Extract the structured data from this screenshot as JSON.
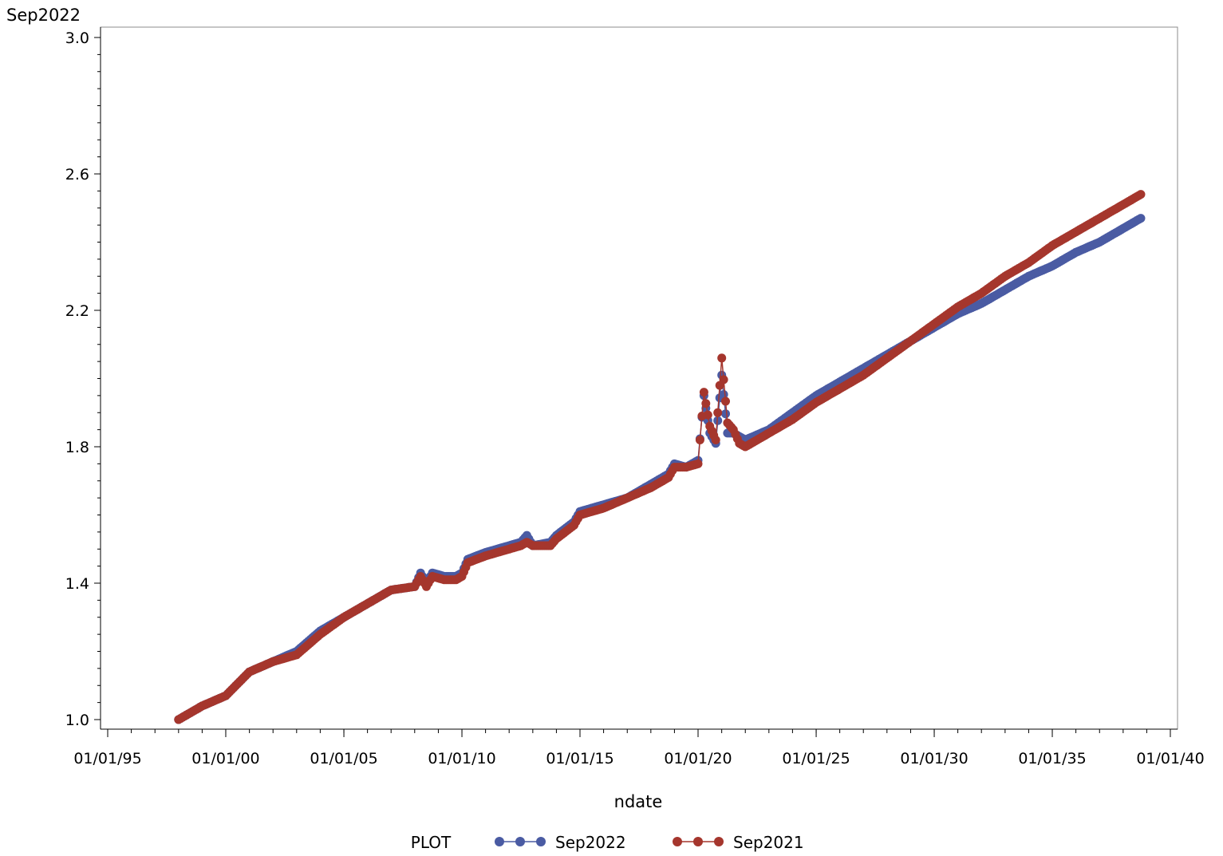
{
  "chart_data": {
    "type": "line",
    "ylabel": "Sep2022",
    "xlabel": "ndate",
    "x_axis": {
      "type": "date",
      "min": "1995-01-01",
      "max": "2040-01-01",
      "ticks": [
        {
          "date": "1995-01-01",
          "label": "01/01/95"
        },
        {
          "date": "2000-01-01",
          "label": "01/01/00"
        },
        {
          "date": "2005-01-01",
          "label": "01/01/05"
        },
        {
          "date": "2010-01-01",
          "label": "01/01/10"
        },
        {
          "date": "2015-01-01",
          "label": "01/01/15"
        },
        {
          "date": "2020-01-01",
          "label": "01/01/20"
        },
        {
          "date": "2025-01-01",
          "label": "01/01/25"
        },
        {
          "date": "2030-01-01",
          "label": "01/01/30"
        },
        {
          "date": "2035-01-01",
          "label": "01/01/35"
        },
        {
          "date": "2040-01-01",
          "label": "01/01/40"
        }
      ]
    },
    "y_axis": {
      "min": 1.0,
      "max": 3.0,
      "ticks": [
        {
          "value": 1.0,
          "label": "1.0"
        },
        {
          "value": 1.4,
          "label": "1.4"
        },
        {
          "value": 1.8,
          "label": "1.8"
        },
        {
          "value": 2.2,
          "label": "2.2"
        },
        {
          "value": 2.6,
          "label": "2.6"
        },
        {
          "value": 3.0,
          "label": "3.0"
        }
      ]
    },
    "grid": false,
    "legend": {
      "title": "PLOT",
      "position": "bottom"
    },
    "series": [
      {
        "name": "Sep2022",
        "color": "#4a5ba3",
        "points": [
          [
            "1998-01-01",
            1.0
          ],
          [
            "1999-01-01",
            1.04
          ],
          [
            "2000-01-01",
            1.07
          ],
          [
            "2001-01-01",
            1.14
          ],
          [
            "2002-01-01",
            1.17
          ],
          [
            "2003-01-01",
            1.2
          ],
          [
            "2004-01-01",
            1.26
          ],
          [
            "2005-01-01",
            1.3
          ],
          [
            "2006-01-01",
            1.34
          ],
          [
            "2007-01-01",
            1.38
          ],
          [
            "2008-01-01",
            1.39
          ],
          [
            "2008-04-01",
            1.43
          ],
          [
            "2008-07-01",
            1.4
          ],
          [
            "2008-10-01",
            1.43
          ],
          [
            "2009-04-01",
            1.42
          ],
          [
            "2009-10-01",
            1.42
          ],
          [
            "2010-01-01",
            1.43
          ],
          [
            "2010-04-01",
            1.47
          ],
          [
            "2011-01-01",
            1.49
          ],
          [
            "2012-01-01",
            1.51
          ],
          [
            "2012-07-01",
            1.52
          ],
          [
            "2012-10-01",
            1.54
          ],
          [
            "2013-01-01",
            1.51
          ],
          [
            "2013-10-01",
            1.52
          ],
          [
            "2014-01-01",
            1.54
          ],
          [
            "2014-10-01",
            1.58
          ],
          [
            "2015-01-01",
            1.61
          ],
          [
            "2016-01-01",
            1.63
          ],
          [
            "2017-01-01",
            1.65
          ],
          [
            "2018-01-01",
            1.69
          ],
          [
            "2018-10-01",
            1.72
          ],
          [
            "2019-01-01",
            1.75
          ],
          [
            "2019-07-01",
            1.74
          ],
          [
            "2020-01-01",
            1.76
          ],
          [
            "2020-04-01",
            1.95
          ],
          [
            "2020-07-01",
            1.84
          ],
          [
            "2020-10-01",
            1.81
          ],
          [
            "2021-01-01",
            2.01
          ],
          [
            "2021-04-01",
            1.84
          ],
          [
            "2021-07-01",
            1.84
          ],
          [
            "2021-10-01",
            1.83
          ],
          [
            "2022-01-01",
            1.82
          ],
          [
            "2023-01-01",
            1.85
          ],
          [
            "2024-01-01",
            1.9
          ],
          [
            "2025-01-01",
            1.95
          ],
          [
            "2026-01-01",
            1.99
          ],
          [
            "2027-01-01",
            2.03
          ],
          [
            "2028-01-01",
            2.07
          ],
          [
            "2029-01-01",
            2.11
          ],
          [
            "2030-01-01",
            2.15
          ],
          [
            "2031-01-01",
            2.19
          ],
          [
            "2032-01-01",
            2.22
          ],
          [
            "2033-01-01",
            2.26
          ],
          [
            "2034-01-01",
            2.3
          ],
          [
            "2035-01-01",
            2.33
          ],
          [
            "2036-01-01",
            2.37
          ],
          [
            "2037-01-01",
            2.4
          ],
          [
            "2038-01-01",
            2.44
          ],
          [
            "2038-10-01",
            2.47
          ]
        ]
      },
      {
        "name": "Sep2021",
        "color": "#a5362d",
        "points": [
          [
            "1998-01-01",
            1.0
          ],
          [
            "1999-01-01",
            1.04
          ],
          [
            "2000-01-01",
            1.07
          ],
          [
            "2001-01-01",
            1.14
          ],
          [
            "2002-01-01",
            1.17
          ],
          [
            "2003-01-01",
            1.19
          ],
          [
            "2004-01-01",
            1.25
          ],
          [
            "2005-01-01",
            1.3
          ],
          [
            "2006-01-01",
            1.34
          ],
          [
            "2007-01-01",
            1.38
          ],
          [
            "2008-01-01",
            1.39
          ],
          [
            "2008-04-01",
            1.42
          ],
          [
            "2008-07-01",
            1.39
          ],
          [
            "2008-10-01",
            1.42
          ],
          [
            "2009-04-01",
            1.41
          ],
          [
            "2009-10-01",
            1.41
          ],
          [
            "2010-01-01",
            1.42
          ],
          [
            "2010-04-01",
            1.46
          ],
          [
            "2011-01-01",
            1.48
          ],
          [
            "2012-01-01",
            1.5
          ],
          [
            "2012-07-01",
            1.51
          ],
          [
            "2012-10-01",
            1.52
          ],
          [
            "2013-01-01",
            1.51
          ],
          [
            "2013-10-01",
            1.51
          ],
          [
            "2014-01-01",
            1.53
          ],
          [
            "2014-10-01",
            1.57
          ],
          [
            "2015-01-01",
            1.6
          ],
          [
            "2016-01-01",
            1.62
          ],
          [
            "2017-01-01",
            1.65
          ],
          [
            "2018-01-01",
            1.68
          ],
          [
            "2018-10-01",
            1.71
          ],
          [
            "2019-01-01",
            1.74
          ],
          [
            "2019-07-01",
            1.74
          ],
          [
            "2020-01-01",
            1.75
          ],
          [
            "2020-04-01",
            1.96
          ],
          [
            "2020-07-01",
            1.86
          ],
          [
            "2020-10-01",
            1.82
          ],
          [
            "2021-01-01",
            2.06
          ],
          [
            "2021-04-01",
            1.87
          ],
          [
            "2021-07-01",
            1.85
          ],
          [
            "2021-10-01",
            1.81
          ],
          [
            "2022-01-01",
            1.8
          ],
          [
            "2023-01-01",
            1.84
          ],
          [
            "2024-01-01",
            1.88
          ],
          [
            "2025-01-01",
            1.93
          ],
          [
            "2026-01-01",
            1.97
          ],
          [
            "2027-01-01",
            2.01
          ],
          [
            "2028-01-01",
            2.06
          ],
          [
            "2029-01-01",
            2.11
          ],
          [
            "2030-01-01",
            2.16
          ],
          [
            "2031-01-01",
            2.21
          ],
          [
            "2032-01-01",
            2.25
          ],
          [
            "2033-01-01",
            2.3
          ],
          [
            "2034-01-01",
            2.34
          ],
          [
            "2035-01-01",
            2.39
          ],
          [
            "2036-01-01",
            2.43
          ],
          [
            "2037-01-01",
            2.47
          ],
          [
            "2038-01-01",
            2.51
          ],
          [
            "2038-10-01",
            2.54
          ]
        ]
      }
    ]
  }
}
